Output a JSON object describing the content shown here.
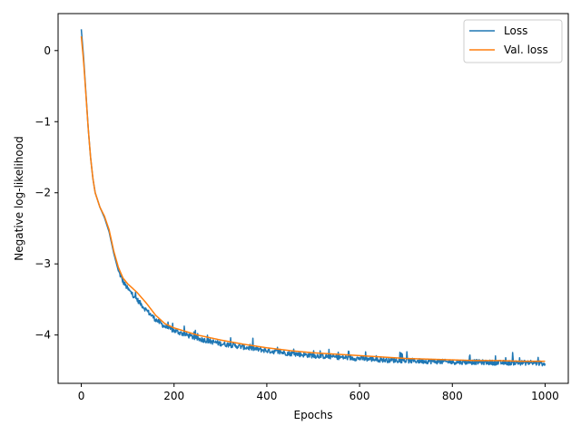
{
  "chart_data": {
    "type": "line",
    "title": "",
    "xlabel": "Epochs",
    "ylabel": "Negative log-likelihood",
    "xlim": [
      -50,
      1050
    ],
    "ylim": [
      -4.68,
      0.52
    ],
    "xticks": [
      0,
      200,
      400,
      600,
      800,
      1000
    ],
    "yticks": [
      0,
      -1,
      -2,
      -3,
      -4
    ],
    "ytick_labels": [
      "0",
      "−1",
      "−2",
      "−3",
      "−4"
    ],
    "grid": false,
    "legend_position": "top-right",
    "series": [
      {
        "name": "Loss",
        "color": "#1f77b4",
        "noisy": true,
        "x": [
          0,
          5,
          10,
          15,
          20,
          25,
          30,
          40,
          50,
          60,
          70,
          80,
          90,
          100,
          120,
          140,
          160,
          180,
          200,
          250,
          300,
          350,
          400,
          450,
          500,
          550,
          600,
          650,
          700,
          750,
          800,
          850,
          900,
          950,
          1000
        ],
        "y": [
          0.3,
          -0.1,
          -0.6,
          -1.1,
          -1.5,
          -1.8,
          -2.0,
          -2.2,
          -2.35,
          -2.55,
          -2.85,
          -3.1,
          -3.25,
          -3.35,
          -3.5,
          -3.65,
          -3.78,
          -3.88,
          -3.94,
          -4.05,
          -4.12,
          -4.17,
          -4.22,
          -4.26,
          -4.29,
          -4.31,
          -4.33,
          -4.35,
          -4.36,
          -4.37,
          -4.38,
          -4.38,
          -4.39,
          -4.39,
          -4.4
        ]
      },
      {
        "name": "Val. loss",
        "color": "#ff7f0e",
        "noisy": false,
        "x": [
          0,
          5,
          10,
          15,
          20,
          25,
          30,
          40,
          50,
          60,
          70,
          80,
          90,
          100,
          120,
          140,
          160,
          180,
          200,
          250,
          300,
          350,
          400,
          450,
          500,
          550,
          600,
          650,
          700,
          750,
          800,
          850,
          900,
          950,
          1000
        ],
        "y": [
          0.2,
          -0.15,
          -0.62,
          -1.1,
          -1.5,
          -1.8,
          -2.0,
          -2.2,
          -2.33,
          -2.52,
          -2.82,
          -3.05,
          -3.2,
          -3.28,
          -3.4,
          -3.55,
          -3.72,
          -3.84,
          -3.9,
          -4.0,
          -4.07,
          -4.13,
          -4.18,
          -4.22,
          -4.25,
          -4.27,
          -4.29,
          -4.31,
          -4.33,
          -4.34,
          -4.35,
          -4.36,
          -4.36,
          -4.37,
          -4.37
        ]
      }
    ]
  }
}
